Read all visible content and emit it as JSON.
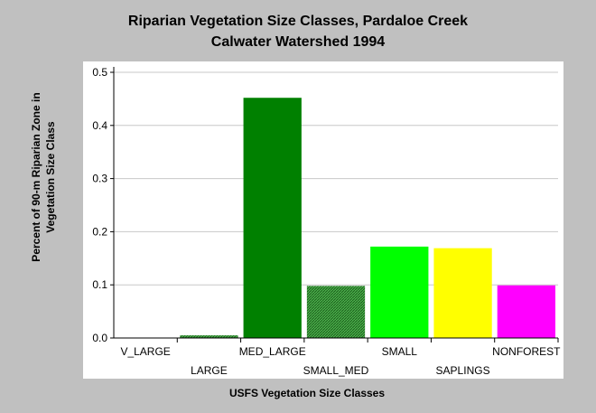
{
  "chart_data": {
    "type": "bar",
    "title": "Riparian Vegetation Size Classes, Pardaloe Creek",
    "subtitle": "Calwater Watershed 1994",
    "xlabel": "USFS Vegetation Size Classes",
    "ylabel": "Percent of 90-m Riparian Zone in Vegetation Size Class",
    "categories": [
      "V_LARGE",
      "LARGE",
      "MED_LARGE",
      "SMALL_MED",
      "SMALL",
      "SAPLINGS",
      "NONFOREST"
    ],
    "values": [
      0.0,
      0.005,
      0.452,
      0.098,
      0.172,
      0.169,
      0.099
    ],
    "colors": [
      "#006400",
      "#006400",
      "#008000",
      "#2e8b2e",
      "#00ff00",
      "#ffff00",
      "#ff00ff"
    ],
    "patterns": [
      false,
      true,
      false,
      true,
      false,
      false,
      false
    ],
    "ylim": [
      0,
      0.5
    ],
    "yticks": [
      0.0,
      0.1,
      0.2,
      0.3,
      0.4,
      0.5
    ],
    "ytick_labels": [
      "0.0",
      "0.1",
      "0.2",
      "0.3",
      "0.4",
      "0.5"
    ],
    "grid": true,
    "legend": "none"
  }
}
